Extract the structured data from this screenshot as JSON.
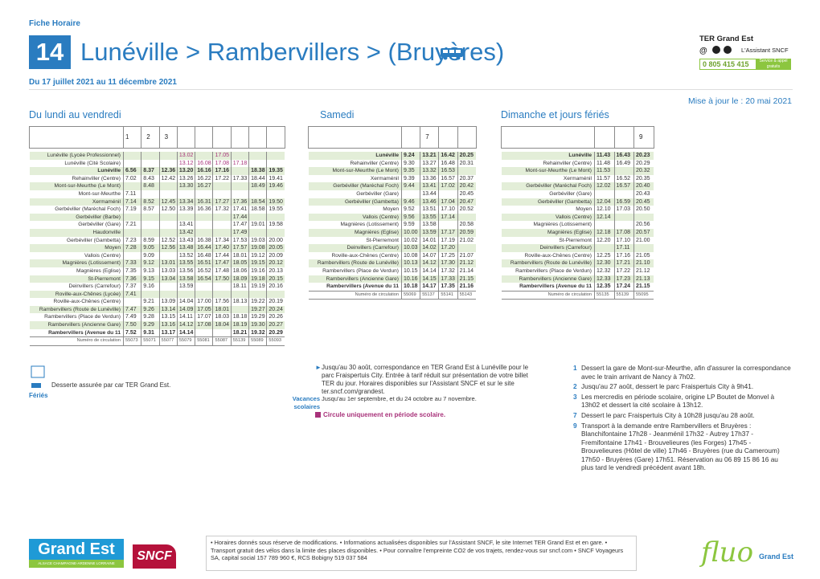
{
  "header": {
    "label": "Fiche Horaire",
    "line": "14",
    "title": "Lunéville > Rambervillers > (Bruyères)",
    "period": "Du 17 juillet 2021 au 11 décembre 2021",
    "brand": "TER Grand Est",
    "assistant": "L'Assistant SNCF",
    "phone": "0 805 415 415",
    "phone_note": "Service & appel gratuits",
    "updated": "Mise à jour le : 20 mai 2021"
  },
  "tables": [
    {
      "title": "Du lundi au vendredi",
      "notes": [
        "1",
        "2",
        "3",
        null,
        null,
        null,
        null,
        null,
        null
      ],
      "rows": [
        {
          "station": "Lunéville (Lycée Professionnel)",
          "times": [
            null,
            null,
            null,
            "13.02",
            null,
            "17.05",
            null,
            null,
            null
          ]
        },
        {
          "station": "Lunéville (Cité Scolaire)",
          "times": [
            null,
            null,
            null,
            "13.12",
            "16.08",
            "17.08",
            "17.18",
            null,
            null
          ]
        },
        {
          "station": "Lunéville",
          "times": [
            "6.56",
            "8.37",
            "12.36",
            "13.20",
            "16.16",
            "17.16",
            null,
            "18.38",
            "19.35"
          ]
        },
        {
          "station": "Rehainviller (Centre)",
          "times": [
            "7.02",
            "8.43",
            "12.42",
            "13.26",
            "16.22",
            "17.22",
            "17.33",
            "18.44",
            "19.41"
          ]
        },
        {
          "station": "Mont-sur-Meurthe (Le Mont)",
          "times": [
            null,
            "8.48",
            null,
            "13.30",
            "16.27",
            null,
            null,
            "18.49",
            "19.46"
          ]
        },
        {
          "station": "Mont-sur-Meurthe",
          "times": [
            "7.11",
            null,
            null,
            null,
            null,
            null,
            null,
            null,
            null
          ]
        },
        {
          "station": "Xermaménil",
          "times": [
            "7.14",
            "8.52",
            "12.45",
            "13.34",
            "16.31",
            "17.27",
            "17.36",
            "18.54",
            "19.50"
          ]
        },
        {
          "station": "Gerbéviller (Maréchal Foch)",
          "times": [
            "7.19",
            "8.57",
            "12.50",
            "13.39",
            "16.36",
            "17.32",
            "17.41",
            "18.58",
            "19.55"
          ]
        },
        {
          "station": "Gerbéviller (Barbe)",
          "times": [
            null,
            null,
            null,
            null,
            null,
            null,
            "17.44",
            null,
            null
          ]
        },
        {
          "station": "Gerbéviller (Gare)",
          "times": [
            "7.21",
            null,
            null,
            "13.41",
            null,
            null,
            "17.47",
            "19.01",
            "19.58"
          ]
        },
        {
          "station": "Haudonville",
          "times": [
            null,
            null,
            null,
            "13.42",
            null,
            null,
            "17.49",
            null,
            null
          ]
        },
        {
          "station": "Gerbéviller (Gambetta)",
          "times": [
            "7.23",
            "8.59",
            "12.52",
            "13.43",
            "16.38",
            "17.34",
            "17.53",
            "19.03",
            "20.00"
          ]
        },
        {
          "station": "Moyen",
          "times": [
            "7.28",
            "9.05",
            "12.56",
            "13.48",
            "16.44",
            "17.40",
            "17.57",
            "19.08",
            "20.05"
          ]
        },
        {
          "station": "Vallois (Centre)",
          "times": [
            null,
            "9.09",
            null,
            "13.52",
            "16.48",
            "17.44",
            "18.01",
            "19.12",
            "20.09"
          ]
        },
        {
          "station": "Magnières (Lotissement)",
          "times": [
            "7.33",
            "9.12",
            "13.01",
            "13.55",
            "16.51",
            "17.47",
            "18.05",
            "19.15",
            "20.12"
          ]
        },
        {
          "station": "Magnières (Eglise)",
          "times": [
            "7.35",
            "9.13",
            "13.03",
            "13.56",
            "16.52",
            "17.48",
            "18.06",
            "19.16",
            "20.13"
          ]
        },
        {
          "station": "St-Pierremont",
          "times": [
            "7.36",
            "9.15",
            "13.04",
            "13.58",
            "16.54",
            "17.50",
            "18.09",
            "19.18",
            "20.15"
          ]
        },
        {
          "station": "Deinvillers (Carrefour)",
          "times": [
            "7.37",
            "9.16",
            null,
            "13.59",
            null,
            null,
            "18.11",
            "19.19",
            "20.16"
          ]
        },
        {
          "station": "Roville-aux-Chênes (Lycée)",
          "times": [
            "7.41",
            null,
            null,
            null,
            null,
            null,
            null,
            null,
            null
          ]
        },
        {
          "station": "Roville-aux-Chênes (Centre)",
          "times": [
            null,
            "9.21",
            "13.09",
            "14.04",
            "17.00",
            "17.56",
            "18.13",
            "19.22",
            "20.19"
          ]
        },
        {
          "station": "Rambervillers (Route de Lunéville)",
          "times": [
            "7.47",
            "9.26",
            "13.14",
            "14.09",
            "17.05",
            "18.01",
            null,
            "19.27",
            "20.24"
          ]
        },
        {
          "station": "Rambervillers (Place de Verdun)",
          "times": [
            "7.49",
            "9.28",
            "13.15",
            "14.11",
            "17.07",
            "18.03",
            "18.18",
            "19.29",
            "20.26"
          ]
        },
        {
          "station": "Rambervillers (Ancienne Gare)",
          "times": [
            "7.50",
            "9.29",
            "13.16",
            "14.12",
            "17.08",
            "18.04",
            "18.19",
            "19.30",
            "20.27"
          ]
        },
        {
          "station": "Rambervillers (Avenue du 11",
          "times": [
            "7.52",
            "9.31",
            "13.17",
            "14.14",
            null,
            null,
            "18.21",
            "19.32",
            "20.29"
          ]
        }
      ],
      "circulation": {
        "label": "Numéro de circulation",
        "numbers": [
          "55073",
          "55071",
          "55077",
          "55079",
          "55081",
          "55087",
          "55139",
          "55089",
          "55093"
        ]
      }
    },
    {
      "title": "Samedi",
      "notes": [
        null,
        "7",
        null,
        null
      ],
      "rows": [
        {
          "station": "Lunéville",
          "times": [
            "9.24",
            "13.21",
            "16.42",
            "20.25"
          ]
        },
        {
          "station": "Rehainviller (Centre)",
          "times": [
            "9.30",
            "13.27",
            "16.48",
            "20.31"
          ]
        },
        {
          "station": "Mont-sur-Meurthe (Le Mont)",
          "times": [
            "9.35",
            "13.32",
            "16.53",
            null
          ]
        },
        {
          "station": "Xermaménil",
          "times": [
            "9.39",
            "13.36",
            "16.57",
            "20.37"
          ]
        },
        {
          "station": "Gerbéviller (Maréchal Foch)",
          "times": [
            "9.44",
            "13.41",
            "17.02",
            "20.42"
          ]
        },
        {
          "station": "Gerbéviller (Gare)",
          "times": [
            null,
            "13.44",
            null,
            "20.45"
          ]
        },
        {
          "station": "Gerbéviller (Gambetta)",
          "times": [
            "9.46",
            "13.46",
            "17.04",
            "20.47"
          ]
        },
        {
          "station": "Moyen",
          "times": [
            "9.52",
            "13.51",
            "17.10",
            "20.52"
          ]
        },
        {
          "station": "Vallois (Centre)",
          "times": [
            "9.56",
            "13.55",
            "17.14",
            null
          ]
        },
        {
          "station": "Magnières (Lotissement)",
          "times": [
            "9.59",
            "13.58",
            null,
            "20.58"
          ]
        },
        {
          "station": "Magnières (Eglise)",
          "times": [
            "10.00",
            "13.59",
            "17.17",
            "20.59"
          ]
        },
        {
          "station": "St-Pierremont",
          "times": [
            "10.02",
            "14.01",
            "17.19",
            "21.02"
          ]
        },
        {
          "station": "Deinvillers (Carrefour)",
          "times": [
            "10.03",
            "14.02",
            "17.20",
            null
          ]
        },
        {
          "station": "Roville-aux-Chênes (Centre)",
          "times": [
            "10.08",
            "14.07",
            "17.25",
            "21.07"
          ]
        },
        {
          "station": "Rambervillers (Route de Lunéville)",
          "times": [
            "10.13",
            "14.12",
            "17.30",
            "21.12"
          ]
        },
        {
          "station": "Rambervillers (Place de Verdun)",
          "times": [
            "10.15",
            "14.14",
            "17.32",
            "21.14"
          ]
        },
        {
          "station": "Rambervillers (Ancienne Gare)",
          "times": [
            "10.16",
            "14.15",
            "17.33",
            "21.15"
          ]
        },
        {
          "station": "Rambervillers (Avenue du 11",
          "times": [
            "10.18",
            "14.17",
            "17.35",
            "21.16"
          ]
        }
      ],
      "circulation": {
        "label": "Numéro de circulation",
        "numbers": [
          "55069",
          "55137",
          "55141",
          "55143"
        ]
      }
    },
    {
      "title": "Dimanche et jours fériés",
      "notes": [
        null,
        null,
        "9"
      ],
      "rows": [
        {
          "station": "Lunéville",
          "times": [
            "11.43",
            "16.43",
            "20.23"
          ]
        },
        {
          "station": "Rehainviller (Centre)",
          "times": [
            "11.48",
            "16.49",
            "20.29"
          ]
        },
        {
          "station": "Mont-sur-Meurthe (Le Mont)",
          "times": [
            "11.53",
            null,
            "20.32"
          ]
        },
        {
          "station": "Xermaménil",
          "times": [
            "11.57",
            "16.52",
            "20.35"
          ]
        },
        {
          "station": "Gerbéviller (Maréchal Foch)",
          "times": [
            "12.02",
            "16.57",
            "20.40"
          ]
        },
        {
          "station": "Gerbéviller (Gare)",
          "times": [
            null,
            null,
            "20.43"
          ]
        },
        {
          "station": "Gerbéviller (Gambetta)",
          "times": [
            "12.04",
            "16.59",
            "20.45"
          ]
        },
        {
          "station": "Moyen",
          "times": [
            "12.10",
            "17.03",
            "20.50"
          ]
        },
        {
          "station": "Vallois (Centre)",
          "times": [
            "12.14",
            null,
            null
          ]
        },
        {
          "station": "Magnières (Lotissement)",
          "times": [
            null,
            null,
            "20.56"
          ]
        },
        {
          "station": "Magnières (Eglise)",
          "times": [
            "12.18",
            "17.08",
            "20.57"
          ]
        },
        {
          "station": "St-Pierremont",
          "times": [
            "12.20",
            "17.10",
            "21.00"
          ]
        },
        {
          "station": "Deinvillers (Carrefour)",
          "times": [
            null,
            "17.11",
            null
          ]
        },
        {
          "station": "Roville-aux-Chênes (Centre)",
          "times": [
            "12.25",
            "17.16",
            "21.05"
          ]
        },
        {
          "station": "Rambervillers (Route de Lunéville)",
          "times": [
            "12.30",
            "17.21",
            "21.10"
          ]
        },
        {
          "station": "Rambervillers (Place de Verdun)",
          "times": [
            "12.32",
            "17.22",
            "21.12"
          ]
        },
        {
          "station": "Rambervillers (Ancienne Gare)",
          "times": [
            "12.33",
            "17.23",
            "21.13"
          ]
        },
        {
          "station": "Rambervillers (Avenue du 11",
          "times": [
            "12.35",
            "17.24",
            "21.15"
          ]
        }
      ],
      "circulation": {
        "label": "Numéro de circulation",
        "numbers": [
          "55135",
          "55139",
          "55095"
        ]
      }
    }
  ],
  "legend": {
    "coach": "Desserte assurée par car TER Grand Est.",
    "holidays": "Fériés",
    "fraispertuis": "Jusqu'au 30 août, correspondance en TER Grand Est à Lunéville pour le parc Fraispertuis City. Entrée à tarif réduit sur présentation de votre billet TER du jour. Horaires disponibles sur l'Assistant SNCF et sur le site ter.sncf.com/grandest.",
    "vacances": "Vacances scolaires",
    "vacances_dates": "Jusqu'au 1er septembre, et du 24 octobre au 7 novembre.",
    "school_only": "Circule uniquement en période scolaire."
  },
  "notes": [
    {
      "number": "1",
      "text": "Dessert la gare de Mont-sur-Meurthe, afin d'assurer la correspondance avec le train arrivant de Nancy à 7h02."
    },
    {
      "number": "2",
      "text": "Jusqu'au 27 août, dessert le parc Fraispertuis City à 9h41."
    },
    {
      "number": "3",
      "text": "Les mercredis en période scolaire, origine LP Boutet de Monvel à 13h02 et dessert la cité scolaire à 13h12."
    },
    {
      "number": "7",
      "text": "Dessert le parc Fraispertuis City à 10h28 jusqu'au 28 août."
    },
    {
      "number": "9",
      "text": "Transport à la demande entre Rambervillers et Bruyères : Blanchifontaine 17h28 - Jeanménil 17h32 - Autrey 17h37 - Fremifontaine 17h41 - Brouvelieures (les Forges) 17h45 - Brouvelieures (Hôtel de ville) 17h46 - Bruyères (rue du Cameroum) 17h50 - Bruyères (Gare) 17h51. Réservation au 06 89 15 86 16 au plus tard le vendredi précédent avant 18h."
    }
  ],
  "footer": {
    "text": "• Horaires donnés sous réserve de modifications. • Informations actualisées disponibles sur l'Assistant SNCF, le site Internet TER Grand Est et en gare. • Transport gratuit des vélos dans la limite des places disponibles. • Pour connaître l'empreinte CO2 de vos trajets, rendez-vous sur sncf.com • SNCF Voyageurs SA, capital social 157 789 960 €, RCS Bobigny 519 037 584",
    "logo_region": "Grand Est",
    "logo_region_sub": "ALSACE CHAMPAGNE-ARDENNE LORRAINE",
    "logo_sncf": "SNCF",
    "logo_fluo": "fluo",
    "logo_fluo_sub": "Grand Est"
  }
}
